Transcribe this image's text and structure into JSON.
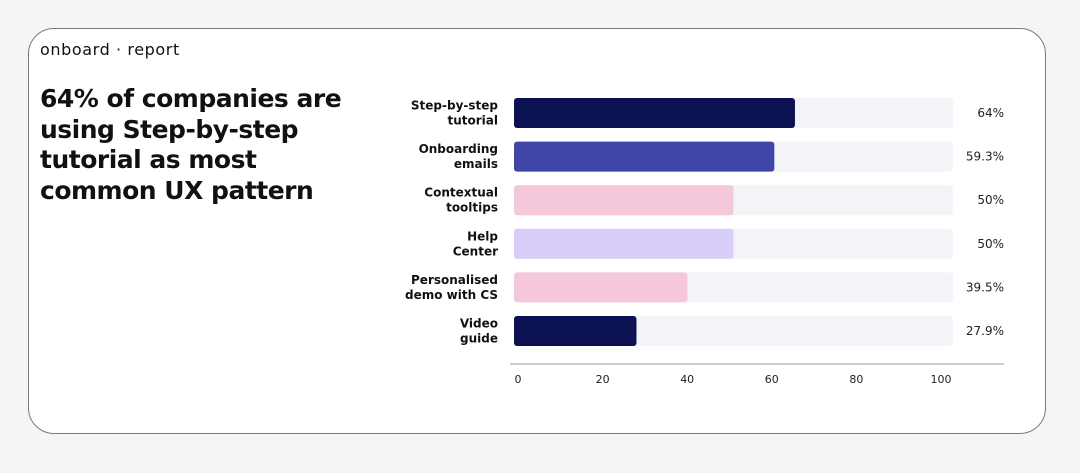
{
  "brand": "onboard · report",
  "headline": "64% of companies are using Step-by-step tutorial as most common UX pattern",
  "chart_data": {
    "type": "bar",
    "orientation": "horizontal",
    "categories": [
      [
        "Step-by-step",
        "tutorial"
      ],
      [
        "Onboarding",
        "emails"
      ],
      [
        "Contextual",
        "tooltips"
      ],
      [
        "Help",
        "Center"
      ],
      [
        "Personalised",
        "demo with CS"
      ],
      [
        "Video",
        "guide"
      ]
    ],
    "values": [
      64,
      59.3,
      50,
      50,
      39.5,
      27.9
    ],
    "value_labels": [
      "64%",
      "59.3%",
      "50%",
      "50%",
      "39.5%",
      "27.9%"
    ],
    "bar_colors": [
      "#0c1154",
      "#4046a8",
      "#f4c8da",
      "#d9cdfa",
      "#f4c8da",
      "#0c1154"
    ],
    "track_color": "#f2f4f8",
    "xlim": [
      0,
      100
    ],
    "xticks": [
      0,
      20,
      40,
      60,
      80,
      100
    ],
    "grid": false
  }
}
